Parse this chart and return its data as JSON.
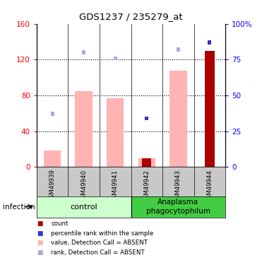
{
  "title": "GDS1237 / 235279_at",
  "samples": [
    "GSM49939",
    "GSM49940",
    "GSM49941",
    "GSM49942",
    "GSM49943",
    "GSM49944"
  ],
  "pink_bar_values": [
    18,
    85,
    77,
    10,
    108,
    0
  ],
  "red_bar_values": [
    0,
    0,
    0,
    10,
    0,
    130
  ],
  "rank_sq_values": [
    37,
    80,
    76,
    34,
    82,
    87
  ],
  "rank_sq_colors": [
    "#AAAADD",
    "#AAAADD",
    "#AAAADD",
    "#3333CC",
    "#AAAADD",
    "#3333CC"
  ],
  "ylim_left": [
    0,
    160
  ],
  "ylim_right": [
    0,
    100
  ],
  "yticks_left": [
    0,
    40,
    80,
    120,
    160
  ],
  "yticks_right": [
    0,
    25,
    50,
    75,
    100
  ],
  "ytick_labels_left": [
    "0",
    "40",
    "80",
    "120",
    "160"
  ],
  "ytick_labels_right": [
    "0",
    "25",
    "50",
    "75",
    "100%"
  ],
  "color_pink_bar": "#FFB3B3",
  "color_red_bar": "#AA0000",
  "color_blue_sq": "#3333CC",
  "color_rank_absent": "#AAAADD",
  "group_control_label": "control",
  "group_anaplasma_label": "Anaplasma\nphagocytophilum",
  "infection_label": "infection",
  "bg_color_control": "#CCFFCC",
  "bg_color_anaplasma": "#44CC44",
  "legend_items": [
    {
      "label": "count",
      "color": "#AA0000"
    },
    {
      "label": "percentile rank within the sample",
      "color": "#3333CC"
    },
    {
      "label": "value, Detection Call = ABSENT",
      "color": "#FFB3B3"
    },
    {
      "label": "rank, Detection Call = ABSENT",
      "color": "#AAAADD"
    }
  ]
}
